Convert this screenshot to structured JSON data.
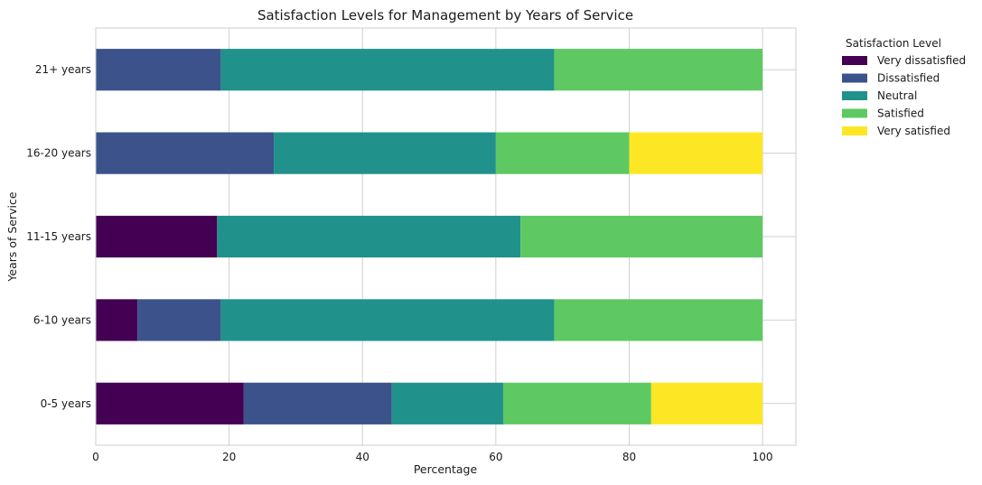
{
  "chart_data": {
    "type": "bar",
    "orientation": "horizontal",
    "stacked": true,
    "title": "Satisfaction Levels for Management by Years of Service",
    "xlabel": "Percentage",
    "ylabel": "Years of Service",
    "xlim": [
      0,
      105
    ],
    "xticks": [
      "0",
      "20",
      "40",
      "60",
      "80",
      "100"
    ],
    "grid": true,
    "categories": [
      "0-5 years",
      "6-10 years",
      "11-15 years",
      "16-20 years",
      "21+ years"
    ],
    "legend": {
      "title": "Satisfaction Level",
      "placement": "outside-upper-right"
    },
    "series": [
      {
        "name": "Very dissatisfied",
        "color": "#440154",
        "values": [
          22.2,
          6.25,
          18.2,
          0,
          0
        ]
      },
      {
        "name": "Dissatisfied",
        "color": "#3b528b",
        "values": [
          22.2,
          12.5,
          0,
          26.7,
          18.75
        ]
      },
      {
        "name": "Neutral",
        "color": "#21918c",
        "values": [
          16.7,
          50,
          45.5,
          33.3,
          50
        ]
      },
      {
        "name": "Satisfied",
        "color": "#5ec962",
        "values": [
          22.2,
          31.25,
          36.3,
          20,
          31.25
        ]
      },
      {
        "name": "Very satisfied",
        "color": "#fde725",
        "values": [
          16.7,
          0,
          0,
          20,
          0
        ]
      }
    ]
  }
}
